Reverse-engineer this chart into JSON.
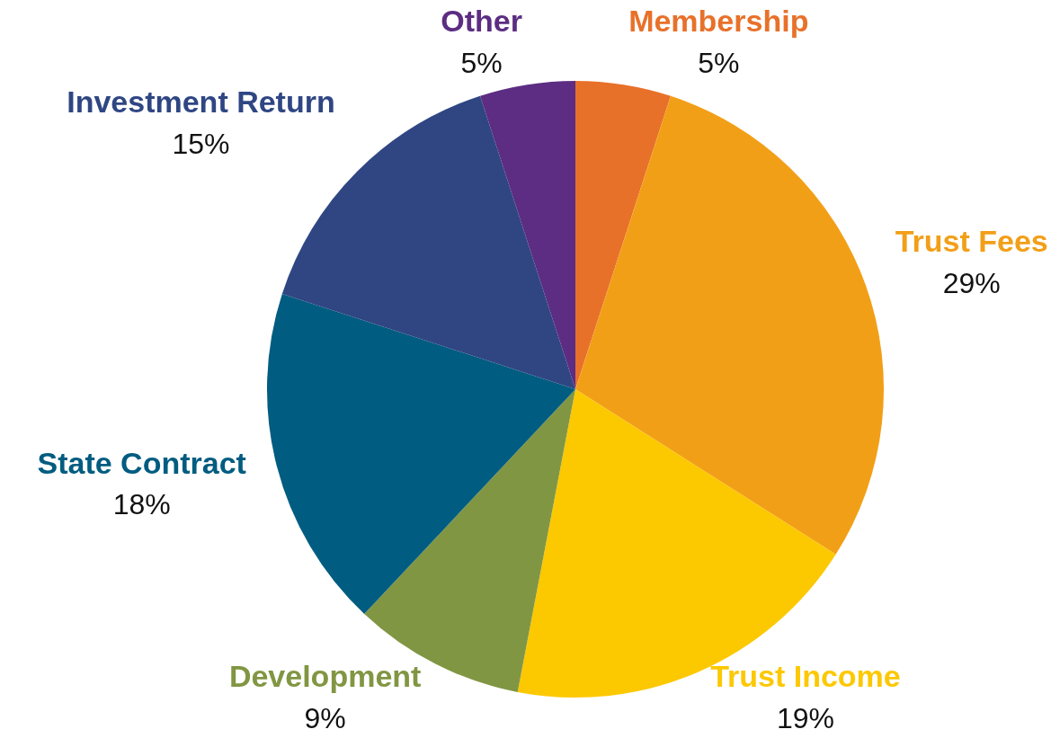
{
  "chart_data": {
    "type": "pie",
    "categories": [
      "Membership",
      "Trust Fees",
      "Trust Income",
      "Development",
      "State Contract",
      "Investment Return",
      "Other"
    ],
    "values": [
      5,
      29,
      19,
      9,
      18,
      15,
      5
    ],
    "colors": [
      "#e8712a",
      "#f29f18",
      "#fcc800",
      "#819642",
      "#005c80",
      "#2f4683",
      "#5c2d82"
    ],
    "value_labels": [
      "5%",
      "29%",
      "19%",
      "9%",
      "18%",
      "15%",
      "5%"
    ],
    "legend": false
  }
}
